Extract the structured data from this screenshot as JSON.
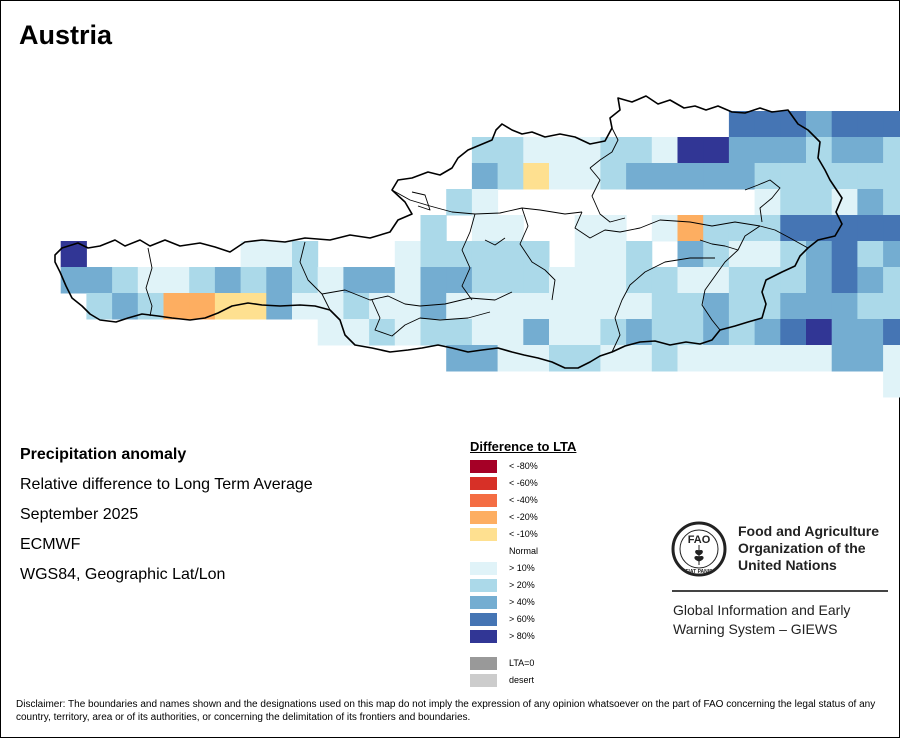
{
  "title": "Austria",
  "map": {
    "country": "Austria",
    "anomaly_grid_legend_classes_used": [
      "< -20%",
      "< -10%",
      "Normal",
      "> 10%",
      "> 20%",
      "> 40%",
      "> 60%",
      "> 80%"
    ]
  },
  "info": {
    "heading": "Precipitation anomaly",
    "line1": "Relative difference to Long Term Average",
    "line2": "September 2025",
    "line3": "ECMWF",
    "line4": "WGS84, Geographic Lat/Lon"
  },
  "legend": {
    "title": "Difference to LTA",
    "items": [
      {
        "label": "< -80%",
        "color": "#a50026"
      },
      {
        "label": "< -60%",
        "color": "#d73027"
      },
      {
        "label": "< -40%",
        "color": "#f46d43"
      },
      {
        "label": "< -20%",
        "color": "#fdae61"
      },
      {
        "label": "< -10%",
        "color": "#fee090"
      },
      {
        "label": "Normal",
        "color": "#ffffff"
      },
      {
        "label": "> 10%",
        "color": "#e0f3f8"
      },
      {
        "label": "> 20%",
        "color": "#abd9e9"
      },
      {
        "label": "> 40%",
        "color": "#74add1"
      },
      {
        "label": "> 60%",
        "color": "#4575b4"
      },
      {
        "label": "> 80%",
        "color": "#313695"
      }
    ],
    "extra": [
      {
        "label": "LTA=0",
        "color": "#999999"
      },
      {
        "label": "desert",
        "color": "#cccccc"
      }
    ]
  },
  "org": {
    "logo_text": "FAO",
    "logo_motto": "FIAT PANIS",
    "name_line1": "Food and Agriculture",
    "name_line2": "Organization of the",
    "name_line3": "United Nations",
    "system_line1": "Global Information and Early",
    "system_line2": "Warning System – GIEWS"
  },
  "disclaimer": "Disclaimer: The boundaries and names shown and the designations used on this map do not imply the expression of any opinion whatsoever on the part of FAO concerning the legal status of any country, territory, area or of its authorities, or concerning the delimitation of its frontiers and boundaries."
}
